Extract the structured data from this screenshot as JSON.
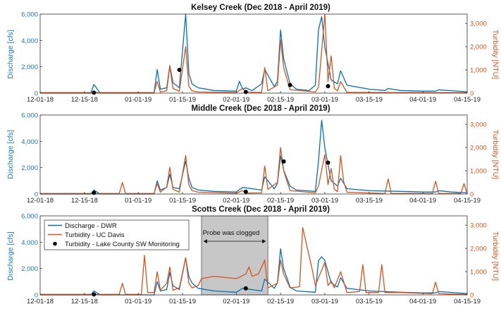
{
  "colors": {
    "discharge": "#0072BD",
    "turbidity": "#D95319",
    "lake_county": "#000000",
    "shade": "#bdbdbd"
  },
  "chart_data": [
    {
      "type": "line",
      "title": "Kelsey Creek    (Dec 2018 - April 2019)",
      "ylabel": "Discharge [cfs]",
      "y2label": "Turbidity [NTU]",
      "xlim": [
        "2018-12-01",
        "2019-04-15"
      ],
      "ylim": [
        0,
        6000
      ],
      "y2lim": [
        0,
        3400
      ],
      "x_ticks": [
        "12-01-18",
        "12-15-18",
        "01-01-19",
        "01-15-19",
        "02-01-19",
        "02-15-19",
        "03-01-19",
        "03-15-19",
        "04-01-19",
        "04-15-19"
      ],
      "y_ticks": [
        "0",
        "2,000",
        "4,000",
        "6,000"
      ],
      "y2_ticks": [
        "0",
        "1,000",
        "2,000",
        "3,000"
      ],
      "series": [
        {
          "axis": "left",
          "x": [
            "2018-12-01",
            "2018-12-17",
            "2018-12-18",
            "2018-12-20",
            "2019-01-06",
            "2019-01-07",
            "2019-01-08",
            "2019-01-10",
            "2019-01-11",
            "2019-01-12",
            "2019-01-14",
            "2019-01-16",
            "2019-01-17",
            "2019-01-18",
            "2019-01-20",
            "2019-01-25",
            "2019-02-01",
            "2019-02-02",
            "2019-02-03",
            "2019-02-04",
            "2019-02-06",
            "2019-02-09",
            "2019-02-10",
            "2019-02-13",
            "2019-02-14",
            "2019-02-15",
            "2019-02-16",
            "2019-02-18",
            "2019-02-20",
            "2019-02-24",
            "2019-02-26",
            "2019-02-27",
            "2019-02-28",
            "2019-03-01",
            "2019-03-03",
            "2019-03-05",
            "2019-03-06",
            "2019-03-08",
            "2019-03-15",
            "2019-03-20",
            "2019-03-21",
            "2019-03-25",
            "2019-04-01",
            "2019-04-05",
            "2019-04-06",
            "2019-04-15"
          ],
          "y": [
            0,
            0,
            650,
            0,
            0,
            1800,
            300,
            400,
            2100,
            800,
            400,
            6000,
            1500,
            700,
            400,
            200,
            150,
            900,
            300,
            400,
            200,
            700,
            1800,
            500,
            900,
            4800,
            2600,
            700,
            300,
            200,
            600,
            4800,
            5800,
            3500,
            1000,
            700,
            1700,
            600,
            300,
            200,
            350,
            200,
            150,
            150,
            250,
            100
          ]
        },
        {
          "axis": "right",
          "x": [
            "2018-12-01",
            "2019-01-06",
            "2019-01-07",
            "2019-01-08",
            "2019-01-10",
            "2019-01-11",
            "2019-01-12",
            "2019-01-14",
            "2019-01-16",
            "2019-01-17",
            "2019-01-18",
            "2019-01-20",
            "2019-02-01",
            "2019-02-03",
            "2019-02-04",
            "2019-02-09",
            "2019-02-10",
            "2019-02-11",
            "2019-02-14",
            "2019-02-15",
            "2019-02-16",
            "2019-02-18",
            "2019-02-26",
            "2019-02-27",
            "2019-03-01",
            "2019-03-02",
            "2019-03-03",
            "2019-03-04",
            "2019-03-05",
            "2019-03-06",
            "2019-03-08",
            "2019-04-15"
          ],
          "y": [
            20,
            20,
            500,
            50,
            100,
            1150,
            200,
            80,
            2000,
            300,
            100,
            50,
            30,
            200,
            50,
            30,
            1100,
            100,
            350,
            2300,
            1100,
            150,
            50,
            250,
            3400,
            500,
            1600,
            200,
            100,
            500,
            30,
            20
          ]
        },
        {
          "axis": "right",
          "x": [
            "2018-12-18",
            "2019-01-14",
            "2019-02-04",
            "2019-02-18",
            "2019-03-02"
          ],
          "y": [
            20,
            1000,
            50,
            350,
            300
          ]
        }
      ]
    },
    {
      "type": "line",
      "title": "Middle Creek    (Dec 2018 - April 2019)",
      "ylabel": "Discharge [cfs]",
      "y2label": "Turbidity [NTU]",
      "xlim": [
        "2018-12-01",
        "2019-04-15"
      ],
      "ylim": [
        0,
        6000
      ],
      "y2lim": [
        0,
        3400
      ],
      "x_ticks": [
        "12-01-18",
        "12-15-18",
        "01-01-19",
        "01-15-19",
        "02-01-19",
        "02-15-19",
        "03-01-19",
        "03-15-19",
        "04-01-19",
        "04-15-19"
      ],
      "y_ticks": [
        "0",
        "2,000",
        "4,000",
        "6,000"
      ],
      "y2_ticks": [
        "0",
        "1,000",
        "2,000",
        "3,000"
      ],
      "series": [
        {
          "axis": "left",
          "x": [
            "2018-12-01",
            "2018-12-17",
            "2018-12-18",
            "2018-12-20",
            "2019-01-06",
            "2019-01-07",
            "2019-01-08",
            "2019-01-10",
            "2019-01-11",
            "2019-01-12",
            "2019-01-14",
            "2019-01-16",
            "2019-01-17",
            "2019-01-18",
            "2019-01-20",
            "2019-01-25",
            "2019-02-01",
            "2019-02-03",
            "2019-02-09",
            "2019-02-10",
            "2019-02-13",
            "2019-02-14",
            "2019-02-15",
            "2019-02-16",
            "2019-02-18",
            "2019-02-20",
            "2019-02-26",
            "2019-02-27",
            "2019-02-28",
            "2019-03-01",
            "2019-03-03",
            "2019-03-05",
            "2019-03-06",
            "2019-03-08",
            "2019-03-15",
            "2019-03-25",
            "2019-04-01",
            "2019-04-05",
            "2019-04-06",
            "2019-04-10",
            "2019-04-15"
          ],
          "y": [
            0,
            0,
            300,
            0,
            0,
            1000,
            300,
            500,
            1500,
            500,
            400,
            2500,
            1200,
            500,
            300,
            200,
            150,
            500,
            300,
            1300,
            400,
            800,
            2900,
            1800,
            600,
            300,
            200,
            2500,
            5600,
            3500,
            1000,
            600,
            1200,
            400,
            250,
            200,
            150,
            150,
            250,
            150,
            100
          ]
        },
        {
          "axis": "right",
          "x": [
            "2018-12-01",
            "2018-12-26",
            "2018-12-27",
            "2018-12-28",
            "2019-01-06",
            "2019-01-07",
            "2019-01-08",
            "2019-01-10",
            "2019-01-11",
            "2019-01-12",
            "2019-01-14",
            "2019-01-16",
            "2019-01-17",
            "2019-01-18",
            "2019-01-20",
            "2019-02-01",
            "2019-02-03",
            "2019-02-04",
            "2019-02-09",
            "2019-02-10",
            "2019-02-11",
            "2019-02-14",
            "2019-02-15",
            "2019-02-16",
            "2019-02-18",
            "2019-02-26",
            "2019-02-27",
            "2019-03-01",
            "2019-03-02",
            "2019-03-03",
            "2019-03-04",
            "2019-03-05",
            "2019-03-06",
            "2019-03-07",
            "2019-03-08",
            "2019-03-20",
            "2019-03-21",
            "2019-03-22",
            "2019-04-04",
            "2019-04-05",
            "2019-04-06",
            "2019-04-13",
            "2019-04-14",
            "2019-04-15"
          ],
          "y": [
            20,
            20,
            500,
            20,
            20,
            450,
            80,
            300,
            1150,
            200,
            80,
            1650,
            400,
            150,
            80,
            30,
            150,
            40,
            50,
            1200,
            200,
            500,
            2000,
            1000,
            150,
            50,
            350,
            1700,
            400,
            1100,
            200,
            100,
            1650,
            500,
            80,
            20,
            650,
            20,
            20,
            550,
            20,
            20,
            450,
            20
          ]
        },
        {
          "axis": "right",
          "x": [
            "2018-12-18",
            "2019-02-04",
            "2019-02-16",
            "2019-03-02"
          ],
          "y": [
            50,
            100,
            1400,
            1350
          ]
        }
      ]
    },
    {
      "type": "line",
      "title": "Scotts Creek    (Dec 2018 - April 2019)",
      "ylabel": "Discharge [cfs]",
      "y2label": "Turbidity [NTU]",
      "xlim": [
        "2018-12-01",
        "2019-04-15"
      ],
      "ylim": [
        0,
        6000
      ],
      "y2lim": [
        0,
        3400
      ],
      "x_ticks": [
        "12-01-18",
        "12-15-18",
        "01-01-19",
        "01-15-19",
        "02-01-19",
        "02-15-19",
        "03-01-19",
        "03-15-19",
        "04-01-19",
        "04-15-19"
      ],
      "y_ticks": [
        "0",
        "2,000",
        "4,000",
        "6,000"
      ],
      "y2_ticks": [
        "0",
        "1,000",
        "2,000",
        "3,000"
      ],
      "legend": {
        "position": "top-left",
        "entries": [
          "Discharge - DWR",
          "Turbidity - UC Davis",
          "Turbidity - Lake County SW Monitoring"
        ]
      },
      "shaded_region": {
        "x": [
          "2019-01-21",
          "2019-02-11"
        ],
        "annotation": "Probe was clogged"
      },
      "series": [
        {
          "name": "Discharge - DWR",
          "axis": "left",
          "x": [
            "2018-12-01",
            "2018-12-17",
            "2018-12-18",
            "2018-12-20",
            "2019-01-06",
            "2019-01-07",
            "2019-01-08",
            "2019-01-10",
            "2019-01-11",
            "2019-01-12",
            "2019-01-14",
            "2019-01-16",
            "2019-01-17",
            "2019-01-18",
            "2019-01-20",
            "2019-01-25",
            "2019-02-01",
            "2019-02-03",
            "2019-02-09",
            "2019-02-10",
            "2019-02-13",
            "2019-02-14",
            "2019-02-15",
            "2019-02-16",
            "2019-02-18",
            "2019-02-20",
            "2019-02-26",
            "2019-02-27",
            "2019-02-28",
            "2019-03-01",
            "2019-03-03",
            "2019-03-05",
            "2019-03-06",
            "2019-03-08",
            "2019-03-15",
            "2019-03-25",
            "2019-04-01",
            "2019-04-05",
            "2019-04-06",
            "2019-04-15"
          ],
          "y": [
            0,
            0,
            300,
            0,
            0,
            1000,
            300,
            400,
            1700,
            700,
            400,
            2800,
            1400,
            900,
            500,
            300,
            200,
            500,
            300,
            1200,
            500,
            900,
            3500,
            2000,
            600,
            300,
            200,
            2600,
            2900,
            2600,
            900,
            600,
            1300,
            500,
            300,
            200,
            150,
            150,
            250,
            100
          ]
        },
        {
          "name": "Turbidity - UC Davis",
          "axis": "right",
          "x": [
            "2018-12-01",
            "2018-12-26",
            "2018-12-27",
            "2018-12-28",
            "2019-01-02",
            "2019-01-03",
            "2019-01-04",
            "2019-01-06",
            "2019-01-07",
            "2019-01-08",
            "2019-01-10",
            "2019-01-11",
            "2019-01-12",
            "2019-01-14",
            "2019-01-16",
            "2019-01-17",
            "2019-01-18",
            "2019-01-20",
            "2019-01-21",
            "2019-01-25",
            "2019-02-01",
            "2019-02-04",
            "2019-02-05",
            "2019-02-06",
            "2019-02-08",
            "2019-02-10",
            "2019-02-11",
            "2019-02-14",
            "2019-02-15",
            "2019-02-16",
            "2019-02-18",
            "2019-02-21",
            "2019-02-22",
            "2019-02-25",
            "2019-02-26",
            "2019-03-01",
            "2019-03-02",
            "2019-03-03",
            "2019-03-04",
            "2019-03-06",
            "2019-03-08",
            "2019-03-12",
            "2019-03-13",
            "2019-03-14",
            "2019-03-18",
            "2019-03-19",
            "2019-03-20",
            "2019-03-25",
            "2019-04-04",
            "2019-04-05",
            "2019-04-06",
            "2019-04-15"
          ],
          "y": [
            20,
            20,
            500,
            20,
            20,
            1700,
            100,
            100,
            1000,
            200,
            500,
            1200,
            200,
            300,
            1600,
            500,
            300,
            400,
            700,
            800,
            700,
            900,
            1200,
            800,
            900,
            1500,
            300,
            500,
            1500,
            900,
            300,
            350,
            2900,
            1100,
            400,
            1400,
            400,
            600,
            300,
            1000,
            100,
            150,
            1300,
            100,
            100,
            1300,
            100,
            100,
            50,
            550,
            50,
            20
          ]
        },
        {
          "name": "Turbidity - Lake County SW Monitoring",
          "axis": "right",
          "x": [
            "2018-12-18",
            "2019-02-04"
          ],
          "y": [
            20,
            280
          ]
        }
      ]
    }
  ]
}
